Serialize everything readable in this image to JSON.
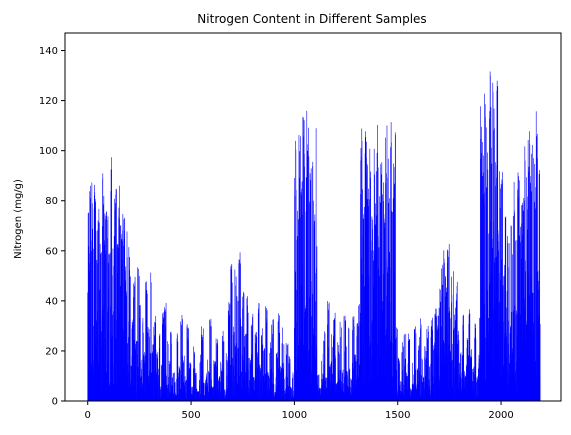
{
  "chart_data": {
    "type": "bar",
    "title": "Nitrogen Content in Different Samples",
    "xlabel": "",
    "ylabel": "Nitrogen (mg/g)",
    "xlim": [
      -110,
      2290
    ],
    "ylim": [
      0,
      147
    ],
    "xticks": [
      0,
      500,
      1000,
      1500,
      2000
    ],
    "yticks": [
      0,
      20,
      40,
      60,
      80,
      100,
      120,
      140
    ],
    "bar_color": "#0000ff",
    "grid": false,
    "legend": "none",
    "bar_count": 2190,
    "segments": [
      {
        "x_range": [
          0,
          30
        ],
        "levels": [
          85,
          68,
          88,
          72,
          90,
          62
        ]
      },
      {
        "x_range": [
          30,
          200
        ],
        "levels": [
          95,
          70,
          88,
          64,
          92,
          75,
          86,
          60,
          98,
          70,
          85,
          66,
          90,
          72,
          80,
          55,
          70
        ]
      },
      {
        "x_range": [
          200,
          320
        ],
        "levels": [
          58,
          38,
          50,
          25,
          56,
          42,
          35,
          20,
          48,
          30,
          52,
          24
        ]
      },
      {
        "x_range": [
          320,
          420
        ],
        "levels": [
          34,
          22,
          28,
          15,
          36,
          40,
          25,
          18,
          30,
          12
        ]
      },
      {
        "x_range": [
          420,
          520
        ],
        "levels": [
          8,
          28,
          14,
          38,
          20,
          10,
          32,
          16,
          6,
          24
        ]
      },
      {
        "x_range": [
          520,
          680
        ],
        "levels": [
          12,
          4,
          20,
          30,
          8,
          22,
          14,
          33,
          6,
          18,
          26,
          10,
          16,
          28,
          5,
          20
        ]
      },
      {
        "x_range": [
          680,
          780
        ],
        "levels": [
          40,
          55,
          32,
          58,
          45,
          60,
          38,
          50,
          28,
          42
        ]
      },
      {
        "x_range": [
          780,
          1000
        ],
        "levels": [
          18,
          35,
          10,
          28,
          40,
          15,
          30,
          22,
          38,
          12,
          25,
          33,
          8,
          20,
          36,
          14,
          30,
          10,
          24,
          18,
          6,
          12
        ]
      },
      {
        "x_range": [
          1000,
          1110
        ],
        "levels": [
          105,
          85,
          110,
          95,
          115,
          90,
          118,
          100,
          112,
          88,
          117
        ]
      },
      {
        "x_range": [
          1110,
          1320
        ],
        "levels": [
          12,
          6,
          20,
          30,
          10,
          40,
          16,
          28,
          36,
          8,
          25,
          33,
          14,
          38,
          22,
          30,
          10,
          36,
          20,
          32,
          40
        ]
      },
      {
        "x_range": [
          1320,
          1490
        ],
        "levels": [
          110,
          85,
          118,
          95,
          105,
          80,
          116,
          92,
          120,
          100,
          108,
          88,
          115,
          98,
          112,
          90,
          110
        ]
      },
      {
        "x_range": [
          1490,
          1700
        ],
        "levels": [
          30,
          18,
          8,
          25,
          35,
          12,
          28,
          5,
          20,
          32,
          14,
          26,
          38,
          10,
          22,
          30,
          16,
          34,
          24,
          40,
          36
        ]
      },
      {
        "x_range": [
          1700,
          1800
        ],
        "levels": [
          45,
          55,
          62,
          50,
          65,
          40,
          52,
          35,
          48,
          30
        ]
      },
      {
        "x_range": [
          1800,
          1900
        ],
        "levels": [
          20,
          35,
          12,
          28,
          40,
          22,
          15,
          32,
          10,
          38
        ]
      },
      {
        "x_range": [
          1900,
          2010
        ],
        "levels": [
          122,
          100,
          130,
          110,
          139,
          118,
          134,
          105,
          128,
          95,
          115
        ]
      },
      {
        "x_range": [
          2010,
          2110
        ],
        "levels": [
          62,
          80,
          70,
          92,
          75,
          88,
          68,
          95,
          72,
          85
        ]
      },
      {
        "x_range": [
          2110,
          2190
        ],
        "levels": [
          105,
          90,
          115,
          100,
          112,
          95,
          118,
          102
        ]
      }
    ]
  }
}
